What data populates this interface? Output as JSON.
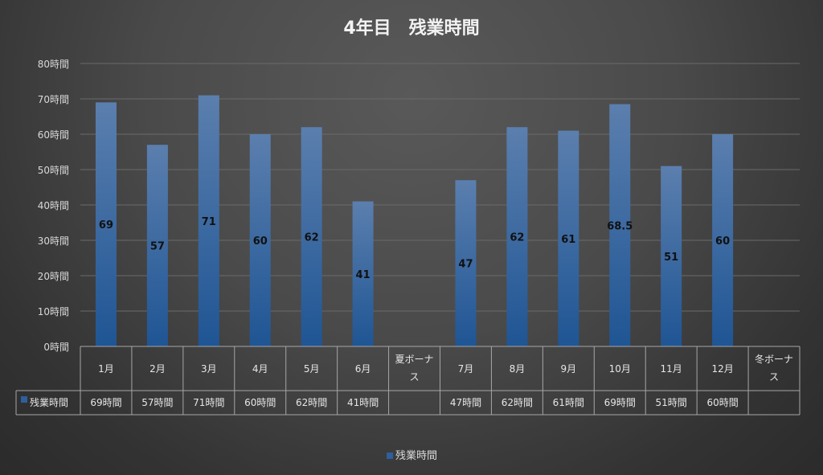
{
  "chart_data": {
    "type": "bar",
    "title": "4年目　残業時間",
    "categories": [
      "1月",
      "2月",
      "3月",
      "4月",
      "5月",
      "6月",
      "夏ボーナス",
      "7月",
      "8月",
      "9月",
      "10月",
      "11月",
      "12月",
      "冬ボーナス"
    ],
    "category_lines": [
      [
        "1月"
      ],
      [
        "2月"
      ],
      [
        "3月"
      ],
      [
        "4月"
      ],
      [
        "5月"
      ],
      [
        "6月"
      ],
      [
        "夏ボーナ",
        "ス"
      ],
      [
        "7月"
      ],
      [
        "8月"
      ],
      [
        "9月"
      ],
      [
        "10月"
      ],
      [
        "11月"
      ],
      [
        "12月"
      ],
      [
        "冬ボーナ",
        "ス"
      ]
    ],
    "series": [
      {
        "name": "残業時間",
        "values": [
          69,
          57,
          71,
          60,
          62,
          41,
          null,
          47,
          62,
          61,
          68.5,
          51,
          60,
          null
        ],
        "data_labels": [
          "69",
          "57",
          "71",
          "60",
          "62",
          "41",
          "",
          "47",
          "62",
          "61",
          "68.5",
          "51",
          "60",
          ""
        ],
        "table_values": [
          "69時間",
          "57時間",
          "71時間",
          "60時間",
          "62時間",
          "41時間",
          "",
          "47時間",
          "62時間",
          "61時間",
          "69時間",
          "51時間",
          "60時間",
          ""
        ]
      }
    ],
    "y_ticks": [
      "0時間",
      "10時間",
      "20時間",
      "30時間",
      "40時間",
      "50時間",
      "60時間",
      "70時間",
      "80時間"
    ],
    "ylim": [
      0,
      80
    ],
    "grid": true,
    "legend": "bottom",
    "legend_label": "残業時間",
    "colors": {
      "bar_top": "#5b7fae",
      "bar_bottom": "#1f5594",
      "grid": "#6a6a6a",
      "table_border": "#a6a6a6"
    }
  }
}
